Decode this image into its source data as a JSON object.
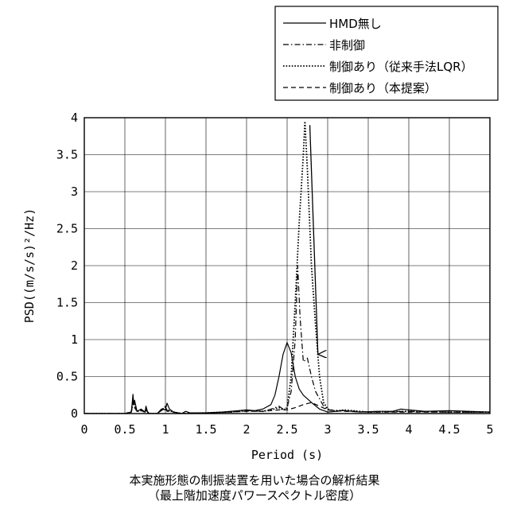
{
  "chart_data": {
    "type": "line",
    "xlabel": "Period (s)",
    "ylabel": "PSD((m/s/s)²/Hz)",
    "xlim": [
      0,
      5
    ],
    "ylim": [
      0,
      4
    ],
    "xticks": [
      0,
      0.5,
      1,
      1.5,
      2,
      2.5,
      3,
      3.5,
      4,
      4.5,
      5
    ],
    "yticks": [
      0,
      0.5,
      1,
      1.5,
      2,
      2.5,
      3,
      3.5,
      4
    ],
    "xtick_labels": [
      "0",
      "0.5",
      "1",
      "1.5",
      "2",
      "2.5",
      "3",
      "3.5",
      "4",
      "4.5",
      "5"
    ],
    "ytick_labels": [
      "0",
      "0.5",
      "1",
      "1.5",
      "2",
      "2.5",
      "3",
      "3.5",
      "4"
    ],
    "grid": true,
    "legend_position": "top-right-outside",
    "series": [
      {
        "name": "HMD無し",
        "style": "solid",
        "color": "#000000",
        "x": [
          0,
          0.5,
          0.58,
          0.6,
          0.61,
          0.62,
          0.65,
          0.7,
          0.75,
          0.76,
          0.78,
          0.8,
          0.9,
          0.95,
          1.0,
          1.02,
          1.05,
          1.1,
          1.2,
          1.25,
          1.3,
          1.5,
          1.7,
          1.9,
          2.0,
          2.1,
          2.2,
          2.3,
          2.35,
          2.4,
          2.45,
          2.5,
          2.55,
          2.6,
          2.65,
          2.7,
          2.8,
          2.9,
          3.0,
          3.2,
          3.4,
          3.6,
          3.8,
          3.9,
          4.0,
          4.2,
          4.5,
          5.0
        ],
        "y": [
          0,
          0,
          0.02,
          0.26,
          0.12,
          0.18,
          0.03,
          0.06,
          0.02,
          0.1,
          0.02,
          0.0,
          0.0,
          0.06,
          0.05,
          0.14,
          0.06,
          0.02,
          0.0,
          0.03,
          0.01,
          0.01,
          0.02,
          0.04,
          0.05,
          0.04,
          0.06,
          0.12,
          0.25,
          0.5,
          0.8,
          0.96,
          0.82,
          0.5,
          0.33,
          0.25,
          0.15,
          0.06,
          0.02,
          0.04,
          0.02,
          0.03,
          0.03,
          0.06,
          0.05,
          0.03,
          0.04,
          0.02
        ]
      },
      {
        "name": "非制御",
        "style": "dashdot",
        "color": "#000000",
        "x": [
          0,
          0.5,
          0.58,
          0.6,
          0.62,
          0.65,
          0.7,
          0.75,
          0.76,
          0.78,
          0.8,
          0.9,
          0.95,
          1.0,
          1.02,
          1.05,
          1.1,
          1.2,
          1.5,
          1.8,
          2.0,
          2.2,
          2.3,
          2.4,
          2.45,
          2.5,
          2.55,
          2.6,
          2.63,
          2.66,
          2.7,
          2.75,
          2.8,
          2.85,
          2.9,
          2.95,
          3.0,
          3.2,
          3.5,
          4.0,
          4.5,
          5.0
        ],
        "y": [
          0,
          0,
          0.02,
          0.2,
          0.12,
          0.03,
          0.05,
          0.02,
          0.08,
          0.02,
          0.0,
          0.0,
          0.05,
          0.1,
          0.04,
          0.04,
          0.02,
          0.0,
          0.01,
          0.02,
          0.04,
          0.03,
          0.06,
          0.1,
          0.06,
          0.08,
          0.3,
          1.0,
          2.0,
          1.3,
          0.7,
          0.75,
          0.5,
          0.3,
          0.2,
          0.1,
          0.05,
          0.04,
          0.02,
          0.03,
          0.02,
          0.02
        ]
      },
      {
        "name": "制御あり（従来手法LQR）",
        "style": "dotted",
        "color": "#000000",
        "x": [
          0,
          0.5,
          0.58,
          0.6,
          0.62,
          0.65,
          0.7,
          0.75,
          0.76,
          0.78,
          0.8,
          0.9,
          0.95,
          1.0,
          1.02,
          1.05,
          1.1,
          1.2,
          1.5,
          1.8,
          2.0,
          2.2,
          2.3,
          2.4,
          2.45,
          2.5,
          2.55,
          2.6,
          2.65,
          2.7,
          2.72,
          2.75,
          2.8,
          2.85,
          2.9,
          2.95,
          3.0,
          3.1,
          3.2,
          3.5,
          4.0,
          4.5,
          5.0
        ],
        "y": [
          0,
          0,
          0.02,
          0.18,
          0.1,
          0.03,
          0.04,
          0.02,
          0.06,
          0.02,
          0.0,
          0.0,
          0.05,
          0.09,
          0.04,
          0.04,
          0.02,
          0.0,
          0.01,
          0.02,
          0.04,
          0.03,
          0.05,
          0.08,
          0.05,
          0.07,
          0.5,
          1.5,
          2.6,
          3.5,
          3.95,
          3.3,
          2.0,
          1.2,
          0.5,
          0.15,
          0.06,
          0.03,
          0.05,
          0.02,
          0.03,
          0.02,
          0.02
        ]
      },
      {
        "name": "制御あり（本提案）",
        "style": "dashed",
        "color": "#000000",
        "x": [
          0,
          0.5,
          0.58,
          0.6,
          0.62,
          0.65,
          0.7,
          0.75,
          0.76,
          0.78,
          0.8,
          0.9,
          0.95,
          1.0,
          1.02,
          1.05,
          1.1,
          1.2,
          1.5,
          1.8,
          2.0,
          2.2,
          2.3,
          2.4,
          2.5,
          2.6,
          2.7,
          2.8,
          2.9,
          3.0,
          3.2,
          3.5,
          4.0,
          4.5,
          5.0
        ],
        "y": [
          0,
          0,
          0.02,
          0.16,
          0.08,
          0.03,
          0.04,
          0.02,
          0.05,
          0.02,
          0.0,
          0.0,
          0.04,
          0.08,
          0.03,
          0.03,
          0.02,
          0.0,
          0.01,
          0.02,
          0.03,
          0.03,
          0.04,
          0.05,
          0.05,
          0.08,
          0.12,
          0.15,
          0.1,
          0.05,
          0.03,
          0.02,
          0.02,
          0.02,
          0.02
        ]
      }
    ],
    "annotations": [
      {
        "type": "arrow",
        "from": [
          2.78,
          3.9
        ],
        "to": [
          2.88,
          0.8
        ]
      }
    ]
  },
  "caption": {
    "line1": "本実施形態の制振装置を用いた場合の解析結果",
    "line2": "（最上階加速度パワースペクトル密度）"
  }
}
